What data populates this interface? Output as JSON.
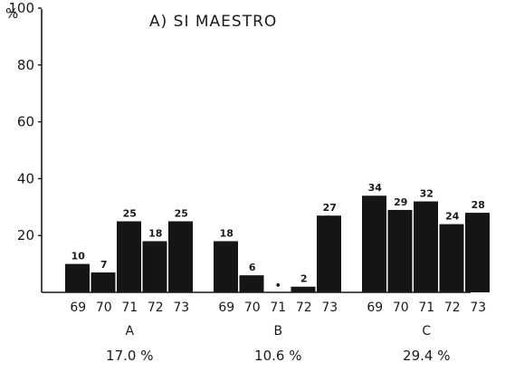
{
  "chart_data": {
    "type": "bar",
    "title": "A) SI MAESTRO",
    "ylabel": "%",
    "ylim": [
      0,
      100
    ],
    "yticks": [
      "20",
      "40",
      "60",
      "80",
      "100"
    ],
    "grid": false,
    "groups": [
      {
        "name": "A",
        "summary": "17.0 %",
        "categories": [
          "69",
          "70",
          "71",
          "72",
          "73"
        ],
        "values": [
          10,
          7,
          25,
          18,
          25
        ],
        "labels": [
          "10",
          "7",
          "25",
          "18",
          "25"
        ]
      },
      {
        "name": "B",
        "summary": "10.6 %",
        "categories": [
          "69",
          "70",
          "71",
          "72",
          "73"
        ],
        "values": [
          18,
          6,
          0,
          2,
          27
        ],
        "labels": [
          "18",
          "6",
          "•",
          "2",
          "27"
        ]
      },
      {
        "name": "C",
        "summary": "29.4 %",
        "categories": [
          "69",
          "70",
          "71",
          "72",
          "73"
        ],
        "values": [
          34,
          29,
          32,
          24,
          28
        ],
        "labels": [
          "34",
          "29",
          "32",
          "24",
          "28"
        ]
      }
    ]
  }
}
